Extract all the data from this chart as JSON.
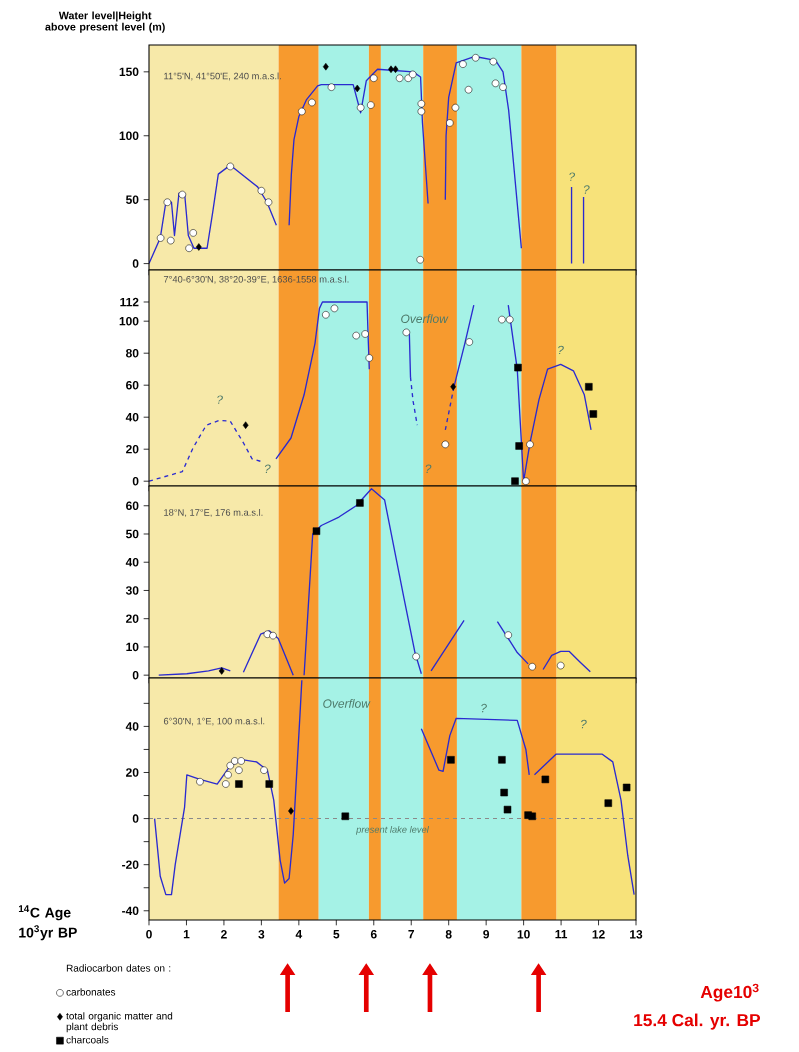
{
  "chart_data": [
    {
      "type": "line",
      "ylabel": "Water level|Height above present level (m)",
      "xlim": [
        0,
        13
      ],
      "xticks": [
        0,
        1,
        2,
        3,
        4,
        5,
        6,
        7,
        8,
        9,
        10,
        11,
        12,
        13
      ],
      "ylim": [
        -5,
        171
      ],
      "yticks": [
        0,
        50,
        100,
        150
      ],
      "tick_labels": "y",
      "bands": [
        {
          "axis": "x",
          "from": 0,
          "to": 3.46,
          "color": "#f7e9a9"
        },
        {
          "axis": "x",
          "from": 3.46,
          "to": 4.53,
          "color": "#f79a2e"
        },
        {
          "axis": "x",
          "from": 4.53,
          "to": 5.87,
          "color": "#a5f2e6"
        },
        {
          "axis": "x",
          "from": 5.87,
          "to": 6.19,
          "color": "#f79a2e"
        },
        {
          "axis": "x",
          "from": 6.19,
          "to": 7.32,
          "color": "#a5f2e6"
        },
        {
          "axis": "x",
          "from": 7.32,
          "to": 8.22,
          "color": "#f79a2e"
        },
        {
          "axis": "x",
          "from": 8.22,
          "to": 9.94,
          "color": "#a5f2e6"
        },
        {
          "axis": "x",
          "from": 9.94,
          "to": 10.88,
          "color": "#f79a2e"
        },
        {
          "axis": "x",
          "from": 10.88,
          "to": 13,
          "color": "#f7e27a"
        }
      ],
      "series": [
        {
          "color": "#2a2ad0",
          "line_style": "solid",
          "x": [
            0,
            0.3,
            0.45,
            0.6,
            0.68,
            0.8,
            0.95,
            1.05,
            1.2,
            1.55,
            1.7,
            1.85,
            2.17,
            2.9,
            3.15,
            3.4,
            3.55,
            3.74,
            3.8,
            3.87,
            4.0,
            4.2,
            4.5,
            4.6,
            5.45,
            5.65,
            5.8,
            6.1,
            7.05,
            7.25,
            7.3,
            7.45,
            7.7,
            7.91,
            7.93,
            8.0,
            8.2,
            8.7,
            9.25,
            9.45,
            9.6,
            9.94
          ],
          "values": [
            0,
            20,
            48,
            48,
            22,
            55,
            55,
            22,
            12,
            12,
            40,
            70,
            77,
            60,
            48,
            30,
            null,
            30,
            70,
            97,
            115,
            128,
            139,
            140,
            140,
            118,
            143,
            152,
            150,
            146,
            110,
            47,
            null,
            50,
            100,
            130,
            157,
            162,
            159,
            150,
            120,
            12
          ]
        },
        {
          "color": "#2a2ad0",
          "line_style": "solid",
          "x": [
            11.28,
            11.28,
            11.4,
            11.6,
            11.6
          ],
          "values": [
            0,
            60,
            null,
            0,
            52
          ]
        },
        {
          "type": "scatter",
          "color": "#ffffff",
          "marker": "circle",
          "x": [
            0.31,
            0.58,
            0.49,
            0.89,
            1.18,
            1.07,
            2.17,
            3.0,
            3.19,
            4.08,
            4.35,
            4.87,
            5.65,
            5.92,
            6.0,
            6.69,
            6.92,
            7.04,
            7.27,
            7.27,
            7.24,
            8.38,
            8.72,
            9.19,
            8.53,
            8.18,
            9.25,
            9.45,
            8.03
          ],
          "values": [
            20,
            18,
            48,
            54,
            24,
            12,
            76,
            57,
            48,
            119,
            126,
            138,
            122,
            124,
            145,
            145,
            145,
            148,
            125,
            119,
            3,
            156,
            161,
            158,
            136,
            122,
            141,
            138,
            110
          ]
        },
        {
          "type": "scatter",
          "color": "#000000",
          "marker": "diamond",
          "x": [
            1.33,
            4.72,
            5.56,
            6.46,
            6.58
          ],
          "values": [
            13,
            154,
            137,
            152,
            152
          ]
        }
      ],
      "annotations": [
        "11°5'N, 41°50'E, 240 m.a.s.l.",
        "?",
        "?"
      ]
    },
    {
      "type": "line",
      "xlim": [
        0,
        13
      ],
      "xticks": [
        0,
        1,
        2,
        3,
        4,
        5,
        6,
        7,
        8,
        9,
        10,
        11,
        12,
        13
      ],
      "ylim": [
        -3,
        132
      ],
      "yticks": [
        0,
        20,
        40,
        60,
        80,
        100,
        112
      ],
      "tick_labels": "y",
      "bands": [
        {
          "axis": "x",
          "from": 0,
          "to": 3.46,
          "color": "#f7e9a9"
        },
        {
          "axis": "x",
          "from": 3.46,
          "to": 4.53,
          "color": "#f79a2e"
        },
        {
          "axis": "x",
          "from": 4.53,
          "to": 5.87,
          "color": "#a5f2e6"
        },
        {
          "axis": "x",
          "from": 5.87,
          "to": 6.19,
          "color": "#f79a2e"
        },
        {
          "axis": "x",
          "from": 6.19,
          "to": 7.32,
          "color": "#a5f2e6"
        },
        {
          "axis": "x",
          "from": 7.32,
          "to": 8.22,
          "color": "#f79a2e"
        },
        {
          "axis": "x",
          "from": 8.22,
          "to": 9.94,
          "color": "#a5f2e6"
        },
        {
          "axis": "x",
          "from": 9.94,
          "to": 10.88,
          "color": "#f79a2e"
        },
        {
          "axis": "x",
          "from": 10.88,
          "to": 13,
          "color": "#f7e27a"
        }
      ],
      "series": [
        {
          "color": "#2a2ad0",
          "line_style": "dashed",
          "x": [
            0,
            0.89,
            1.18,
            1.53,
            1.88,
            2.17,
            2.52,
            2.75,
            3.04,
            5.0,
            6.98,
            7.05,
            7.16,
            7.5,
            7.91,
            8.14
          ],
          "values": [
            0,
            6,
            21,
            35,
            38,
            37.5,
            24,
            14,
            12,
            null,
            65,
            50,
            35,
            null,
            32,
            59
          ]
        },
        {
          "color": "#2a2ad0",
          "line_style": "solid",
          "x": [
            3.39,
            3.79,
            4.14,
            4.43,
            4.55,
            4.63,
            5.82,
            5.85,
            5.88,
            6.3,
            6.81,
            6.95,
            6.98,
            7.5,
            8.14,
            8.43,
            8.67,
            9.0,
            9.59,
            9.65,
            9.83,
            10.0,
            10.17,
            10.41,
            10.64,
            10.99,
            11.33,
            11.62,
            11.8
          ],
          "values": [
            14,
            27,
            54,
            86,
            108,
            112,
            112,
            90,
            70,
            null,
            94,
            92,
            65,
            null,
            59,
            86,
            110,
            null,
            110,
            100,
            70,
            0,
            24,
            51,
            70,
            73,
            69,
            54,
            32
          ]
        },
        {
          "type": "scatter",
          "color": "#ffffff",
          "marker": "circle",
          "x": [
            4.72,
            4.95,
            5.53,
            5.77,
            5.88,
            6.87,
            7.91,
            8.55,
            9.42,
            9.63,
            10.17,
            10.06
          ],
          "values": [
            104,
            108,
            91,
            92,
            77,
            93,
            23,
            87,
            101,
            101,
            23,
            0
          ]
        },
        {
          "type": "scatter",
          "color": "#000000",
          "marker": "diamond",
          "x": [
            2.58,
            8.12
          ],
          "values": [
            35,
            59
          ]
        },
        {
          "type": "scatter",
          "color": "#000000",
          "marker": "square",
          "x": [
            9.85,
            9.88,
            9.77,
            11.74,
            11.86
          ],
          "values": [
            71,
            22,
            0,
            59,
            42
          ]
        }
      ],
      "annotations": [
        "7°40-6°30'N, 38°20-39°E, 1636-1558 m.a.s.l.",
        "Overflow",
        "?",
        "?",
        "?",
        "?"
      ]
    },
    {
      "type": "line",
      "xlim": [
        0,
        13
      ],
      "xticks": [
        0,
        1,
        2,
        3,
        4,
        5,
        6,
        7,
        8,
        9,
        10,
        11,
        12,
        13
      ],
      "ylim": [
        -1,
        67
      ],
      "yticks": [
        0,
        10,
        20,
        30,
        40,
        50,
        60
      ],
      "tick_labels": "y",
      "bands": [
        {
          "axis": "x",
          "from": 0,
          "to": 3.46,
          "color": "#f7e9a9"
        },
        {
          "axis": "x",
          "from": 3.46,
          "to": 4.53,
          "color": "#f79a2e"
        },
        {
          "axis": "x",
          "from": 4.53,
          "to": 5.87,
          "color": "#a5f2e6"
        },
        {
          "axis": "x",
          "from": 5.87,
          "to": 6.19,
          "color": "#f79a2e"
        },
        {
          "axis": "x",
          "from": 6.19,
          "to": 7.32,
          "color": "#a5f2e6"
        },
        {
          "axis": "x",
          "from": 7.32,
          "to": 8.22,
          "color": "#f79a2e"
        },
        {
          "axis": "x",
          "from": 8.22,
          "to": 9.94,
          "color": "#a5f2e6"
        },
        {
          "axis": "x",
          "from": 9.94,
          "to": 10.88,
          "color": "#f79a2e"
        },
        {
          "axis": "x",
          "from": 10.88,
          "to": 13,
          "color": "#f7e27a"
        }
      ],
      "series": [
        {
          "color": "#2a2ad0",
          "line_style": "solid",
          "x": [
            0.26,
            1.01,
            1.59,
            1.94,
            2.17,
            2.3,
            2.52,
            2.98,
            3.21,
            3.45,
            3.85,
            4.0,
            4.14,
            4.37,
            4.6,
            5.07,
            5.53,
            5.94,
            6.29,
            6.81,
            7.1,
            7.27,
            7.4,
            7.53,
            8.41,
            8.8,
            9.3,
            9.83,
            10.12,
            10.3,
            10.52,
            10.75,
            10.99,
            11.22,
            11.51,
            11.78
          ],
          "values": [
            0,
            0.5,
            1.5,
            2.6,
            1.5,
            null,
            1,
            14.5,
            15.7,
            13,
            0,
            null,
            0,
            50,
            53,
            56,
            60,
            66,
            62,
            27,
            8,
            0.5,
            null,
            1.5,
            19.4,
            null,
            19,
            8,
            4,
            null,
            2,
            7,
            8.4,
            8.4,
            4.6,
            1.2
          ]
        },
        {
          "type": "scatter",
          "color": "#ffffff",
          "marker": "circle",
          "x": [
            3.16,
            3.31,
            7.13,
            9.59,
            10.23,
            10.99
          ],
          "values": [
            14.5,
            14,
            6.6,
            14.2,
            3,
            3.4
          ]
        },
        {
          "type": "scatter",
          "color": "#000000",
          "marker": "diamond",
          "x": [
            1.94
          ],
          "values": [
            1.5
          ]
        },
        {
          "type": "scatter",
          "color": "#000000",
          "marker": "square",
          "x": [
            4.47,
            5.63
          ],
          "values": [
            51,
            61
          ]
        }
      ],
      "annotations": [
        "18°N, 17°E, 176 m.a.s.l."
      ]
    },
    {
      "type": "line",
      "xlabel": "$^{14}$C Age 10$^{3}$yr BP",
      "xlim": [
        0,
        13
      ],
      "xticks": [
        0,
        1,
        2,
        3,
        4,
        5,
        6,
        7,
        8,
        9,
        10,
        11,
        12,
        13
      ],
      "ylim": [
        -44,
        61
      ],
      "yticks": [
        -40,
        {
          "value": -30,
          "label": null
        },
        -20,
        {
          "value": -10,
          "label": null
        },
        0,
        {
          "value": 10,
          "label": null
        },
        20,
        {
          "value": 30,
          "label": null
        },
        40,
        {
          "value": 50,
          "label": null
        }
      ],
      "legend": "bottom left",
      "legend_title": "Radiocarbon dates on :",
      "bands": [
        {
          "axis": "x",
          "from": 0,
          "to": 3.46,
          "color": "#f7e9a9"
        },
        {
          "axis": "x",
          "from": 3.46,
          "to": 4.53,
          "color": "#f79a2e"
        },
        {
          "axis": "x",
          "from": 4.53,
          "to": 5.87,
          "color": "#a5f2e6"
        },
        {
          "axis": "x",
          "from": 5.87,
          "to": 6.19,
          "color": "#f79a2e"
        },
        {
          "axis": "x",
          "from": 6.19,
          "to": 7.32,
          "color": "#a5f2e6"
        },
        {
          "axis": "x",
          "from": 7.32,
          "to": 8.22,
          "color": "#f79a2e"
        },
        {
          "axis": "x",
          "from": 8.22,
          "to": 9.94,
          "color": "#a5f2e6"
        },
        {
          "axis": "x",
          "from": 9.94,
          "to": 10.88,
          "color": "#f79a2e"
        },
        {
          "axis": "x",
          "from": 10.88,
          "to": 13,
          "color": "#f7e27a"
        }
      ],
      "ref_lines": [
        {
          "axis": "y",
          "value": 0,
          "label": "present lake level",
          "color": "#8a8a8a",
          "line_style": "dashed"
        }
      ],
      "series": [
        {
          "color": "#2a2ad0",
          "line_style": "solid",
          "x": [
            0.15,
            0.3,
            0.45,
            0.6,
            0.7,
            0.95,
            1.01,
            1.36,
            1.82,
            2.17,
            2.52,
            2.87,
            3.16,
            3.33,
            3.5,
            3.62,
            3.74,
            3.85,
            4.03,
            4.08,
            5.5,
            7.27,
            7.74,
            7.85,
            8.03,
            8.2,
            9.83,
            10.06,
            10.15,
            10.22,
            10.29,
            10.87,
            12.09,
            12.38,
            12.6,
            12.78,
            12.95
          ],
          "values": [
            0,
            -25,
            -33,
            -33,
            -20,
            5,
            19,
            17,
            15,
            23,
            25.5,
            24.6,
            21,
            8,
            -18,
            -28,
            -26,
            -7,
            45,
            60,
            null,
            39,
            21,
            20.5,
            36,
            43.5,
            42.6,
            30,
            19,
            null,
            19,
            28,
            28,
            24.6,
            8,
            -16,
            -33
          ]
        },
        {
          "type": "scatter",
          "name": "carbonates",
          "color": "#ffffff",
          "marker": "circle",
          "x": [
            1.36,
            2.05,
            2.11,
            2.17,
            2.29,
            2.46,
            2.4,
            3.07
          ],
          "values": [
            16,
            15,
            19,
            23,
            25,
            25,
            21,
            21
          ]
        },
        {
          "type": "scatter",
          "name": "total organic matter and plant debris",
          "color": "#000000",
          "marker": "diamond",
          "x": [
            3.79
          ],
          "values": [
            3.3
          ]
        },
        {
          "type": "scatter",
          "name": "charcoals",
          "color": "#000000",
          "marker": "square",
          "x": [
            2.4,
            3.21,
            5.24,
            8.06,
            9.42,
            9.48,
            9.57,
            10.12,
            10.23,
            10.58,
            12.26,
            12.75
          ],
          "values": [
            15,
            15,
            1,
            25.5,
            25.5,
            11.3,
            3.9,
            1.5,
            1,
            17,
            6.7,
            13.5
          ]
        }
      ],
      "annotations": [
        "6°30'N, 1°E, 100 m.a.s.l.",
        "Age10$^{3}$",
        "15.4  Cal. yr.  BP",
        "Overflow",
        "?",
        "?"
      ]
    }
  ]
}
